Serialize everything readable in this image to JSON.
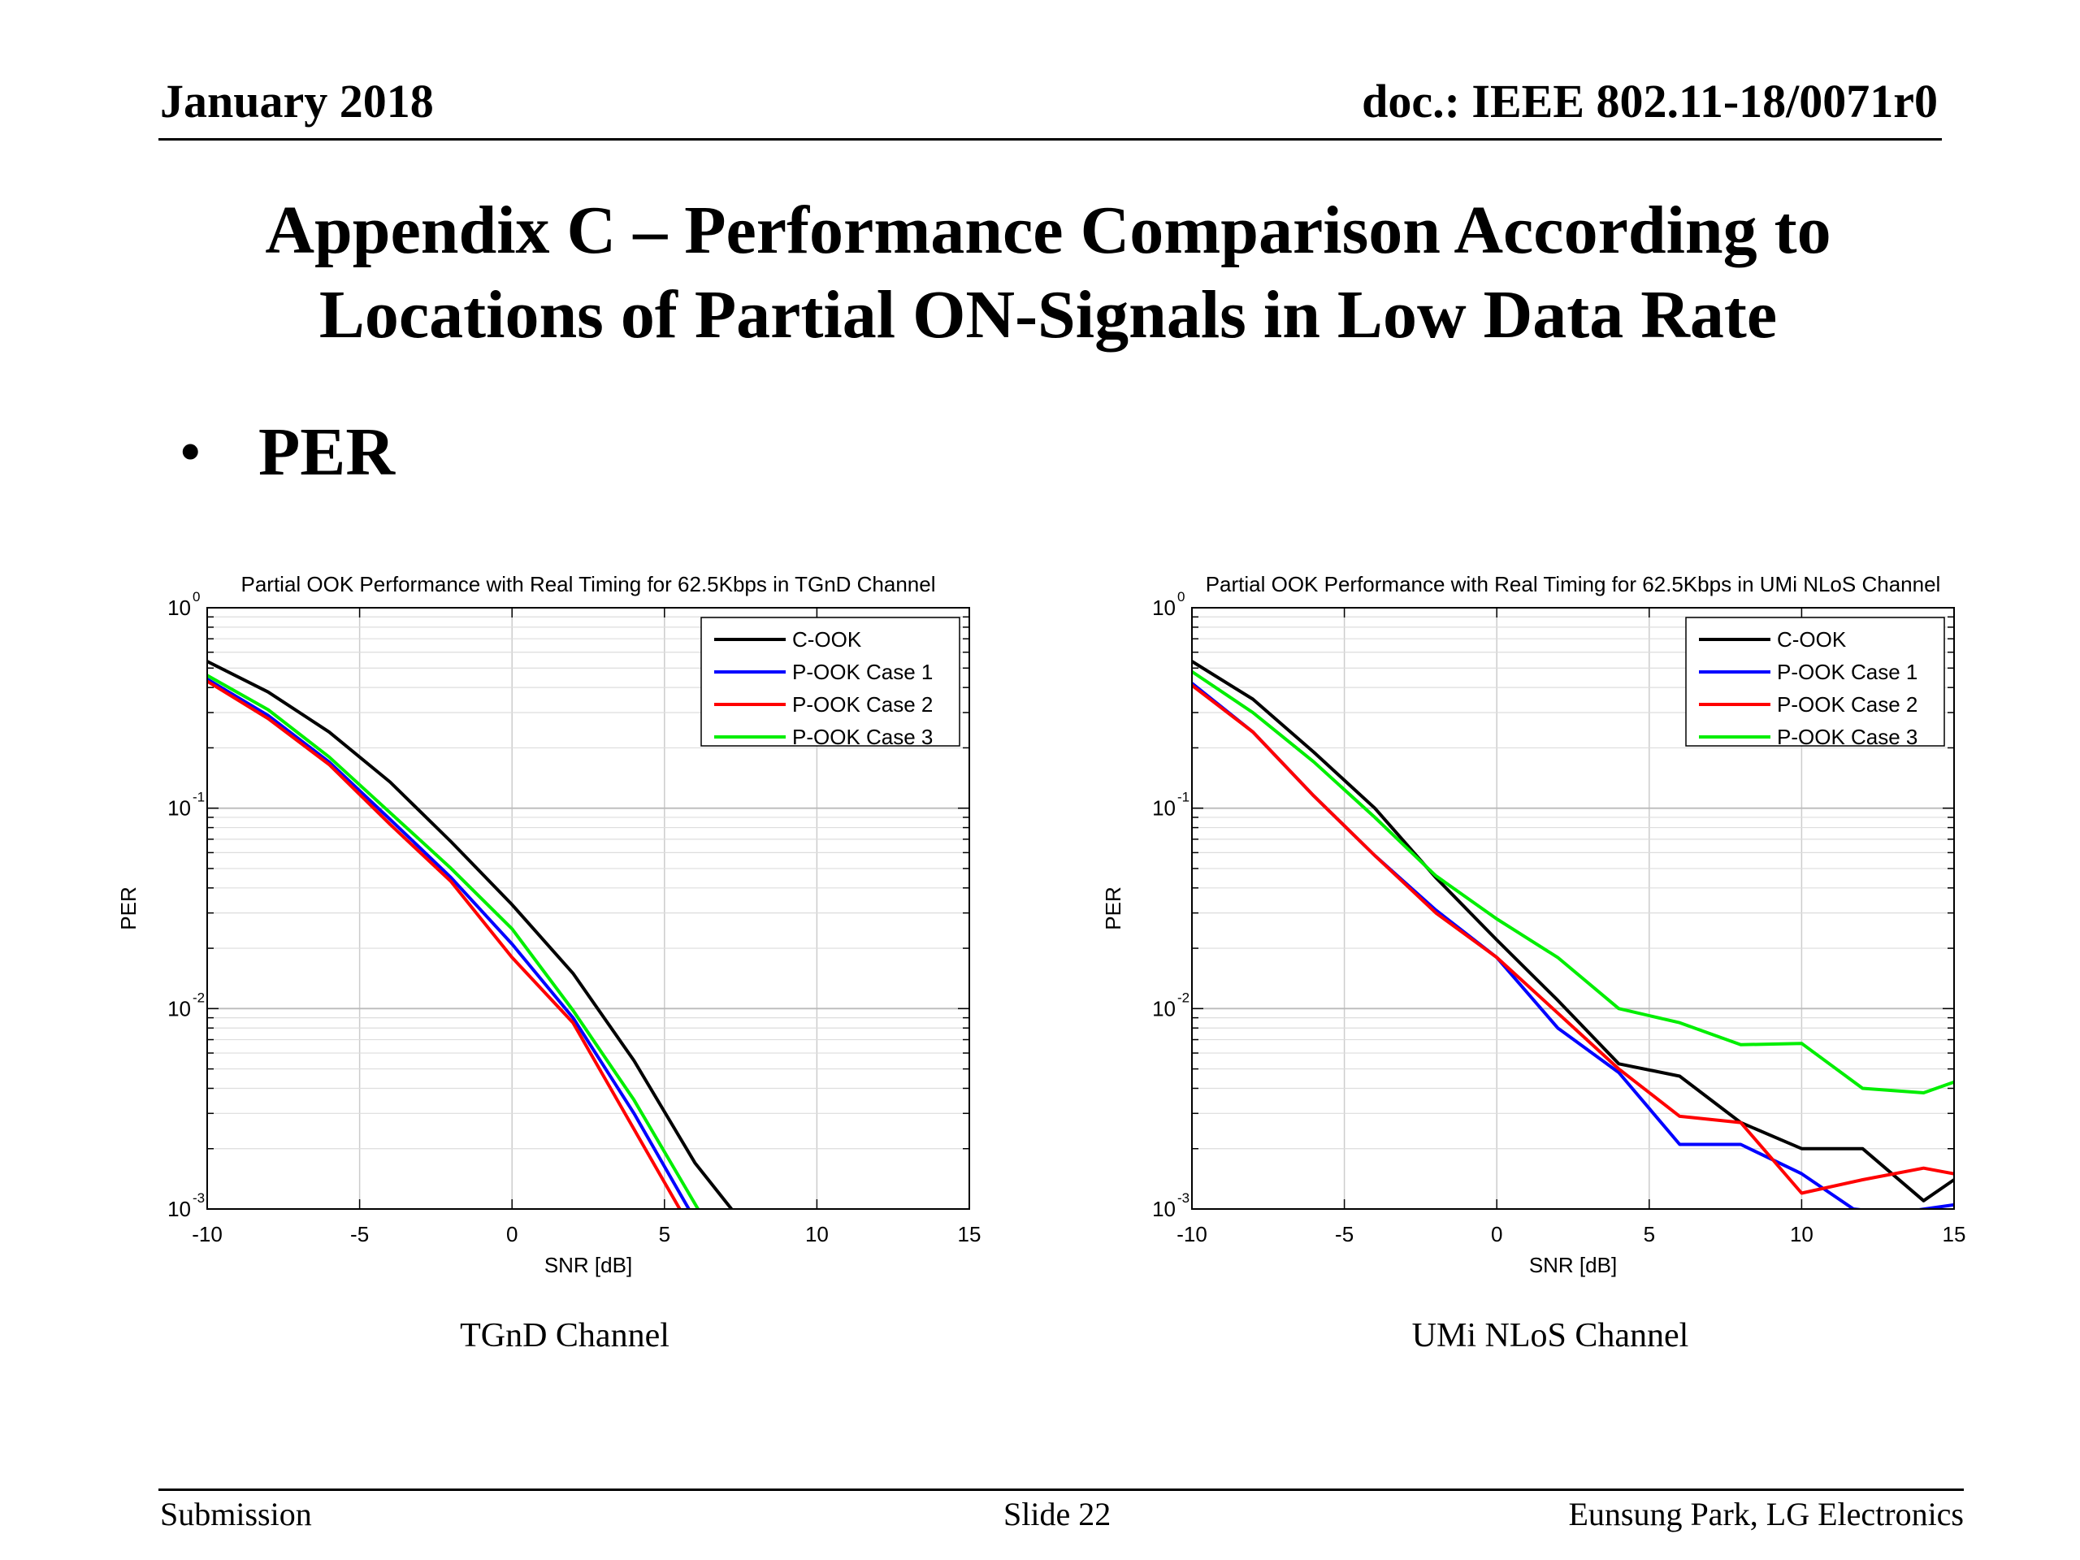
{
  "header": {
    "date": "January 2018",
    "doc": "doc.: IEEE 802.11-18/0071r0"
  },
  "title": {
    "line1": "Appendix C – Performance Comparison According to",
    "line2": "Locations of Partial ON-Signals in Low Data Rate"
  },
  "bullet": {
    "text": "PER"
  },
  "captions": {
    "left": "TGnD Channel",
    "right": "UMi NLoS Channel"
  },
  "footer": {
    "left": "Submission",
    "center": "Slide 22",
    "right": "Eunsung Park, LG Electronics"
  },
  "colors": {
    "C-OOK": "#000000",
    "P-OOK Case 1": "#0000ff",
    "P-OOK Case 2": "#ff0000",
    "P-OOK Case 3": "#00ee00"
  },
  "chart_data": [
    {
      "type": "line",
      "title": "Partial OOK Performance with Real Timing for 62.5Kbps in TGnD Channel",
      "xlabel": "SNR [dB]",
      "ylabel": "PER",
      "xlim": [
        -10,
        15
      ],
      "ylim": [
        0.001,
        1
      ],
      "yscale": "log",
      "grid": true,
      "legend": "top-right",
      "xticks": [
        "-10",
        "-5",
        "0",
        "5",
        "10",
        "15"
      ],
      "yticks": [
        {
          "base": "10",
          "exp": "0"
        },
        {
          "base": "10",
          "exp": "-1"
        },
        {
          "base": "10",
          "exp": "-2"
        },
        {
          "base": "10",
          "exp": "-3"
        }
      ],
      "series": [
        {
          "name": "C-OOK",
          "x": [
            -10,
            -8,
            -6,
            -4,
            -2,
            0,
            2,
            4,
            6,
            7.2
          ],
          "y": [
            0.54,
            0.38,
            0.24,
            0.135,
            0.068,
            0.033,
            0.015,
            0.0055,
            0.0017,
            0.001
          ]
        },
        {
          "name": "P-OOK Case 1",
          "x": [
            -10,
            -8,
            -6,
            -4,
            -2,
            0,
            2,
            4,
            5.8
          ],
          "y": [
            0.44,
            0.29,
            0.17,
            0.088,
            0.045,
            0.021,
            0.009,
            0.003,
            0.001
          ]
        },
        {
          "name": "P-OOK Case 2",
          "x": [
            -10,
            -8,
            -6,
            -4,
            -2,
            0,
            2,
            4,
            5.5
          ],
          "y": [
            0.43,
            0.28,
            0.165,
            0.083,
            0.043,
            0.018,
            0.0085,
            0.0025,
            0.001
          ]
        },
        {
          "name": "P-OOK Case 3",
          "x": [
            -10,
            -8,
            -6,
            -4,
            -2,
            0,
            2,
            4,
            6.1
          ],
          "y": [
            0.46,
            0.31,
            0.18,
            0.095,
            0.05,
            0.025,
            0.0098,
            0.0035,
            0.001
          ]
        }
      ]
    },
    {
      "type": "line",
      "title": "Partial OOK Performance with Real Timing for 62.5Kbps in UMi NLoS Channel",
      "xlabel": "SNR [dB]",
      "ylabel": "PER",
      "xlim": [
        -10,
        15
      ],
      "ylim": [
        0.001,
        1
      ],
      "yscale": "log",
      "grid": true,
      "legend": "top-right",
      "xticks": [
        "-10",
        "-5",
        "0",
        "5",
        "10",
        "15"
      ],
      "yticks": [
        {
          "base": "10",
          "exp": "0"
        },
        {
          "base": "10",
          "exp": "-1"
        },
        {
          "base": "10",
          "exp": "-2"
        },
        {
          "base": "10",
          "exp": "-3"
        }
      ],
      "series": [
        {
          "name": "C-OOK",
          "x": [
            -10,
            -8,
            -6,
            -4,
            -2,
            0,
            2,
            4,
            6,
            8,
            10,
            12,
            14,
            15
          ],
          "y": [
            0.54,
            0.35,
            0.19,
            0.1,
            0.045,
            0.022,
            0.011,
            0.0053,
            0.0046,
            0.0027,
            0.002,
            0.002,
            0.0011,
            0.0014
          ]
        },
        {
          "name": "P-OOK Case 1",
          "x": [
            -10,
            -8,
            -6,
            -4,
            -2,
            0,
            2,
            4,
            6,
            8,
            10,
            11.7,
            13,
            15
          ],
          "y": [
            0.42,
            0.24,
            0.115,
            0.058,
            0.031,
            0.018,
            0.008,
            0.0048,
            0.0021,
            0.0021,
            0.0015,
            0.001,
            0.00095,
            0.00105
          ]
        },
        {
          "name": "P-OOK Case 2",
          "x": [
            -10,
            -8,
            -6,
            -4,
            -2,
            0,
            2,
            4,
            6,
            8,
            10,
            12,
            14,
            15
          ],
          "y": [
            0.41,
            0.24,
            0.115,
            0.058,
            0.03,
            0.018,
            0.0095,
            0.005,
            0.0029,
            0.0027,
            0.0012,
            0.0014,
            0.0016,
            0.0015
          ]
        },
        {
          "name": "P-OOK Case 3",
          "x": [
            -10,
            -8,
            -6,
            -4,
            -2,
            0,
            2,
            4,
            6,
            8,
            10,
            12,
            14,
            15
          ],
          "y": [
            0.48,
            0.3,
            0.17,
            0.09,
            0.046,
            0.028,
            0.018,
            0.01,
            0.0085,
            0.0066,
            0.0067,
            0.004,
            0.0038,
            0.0043
          ]
        }
      ]
    }
  ]
}
